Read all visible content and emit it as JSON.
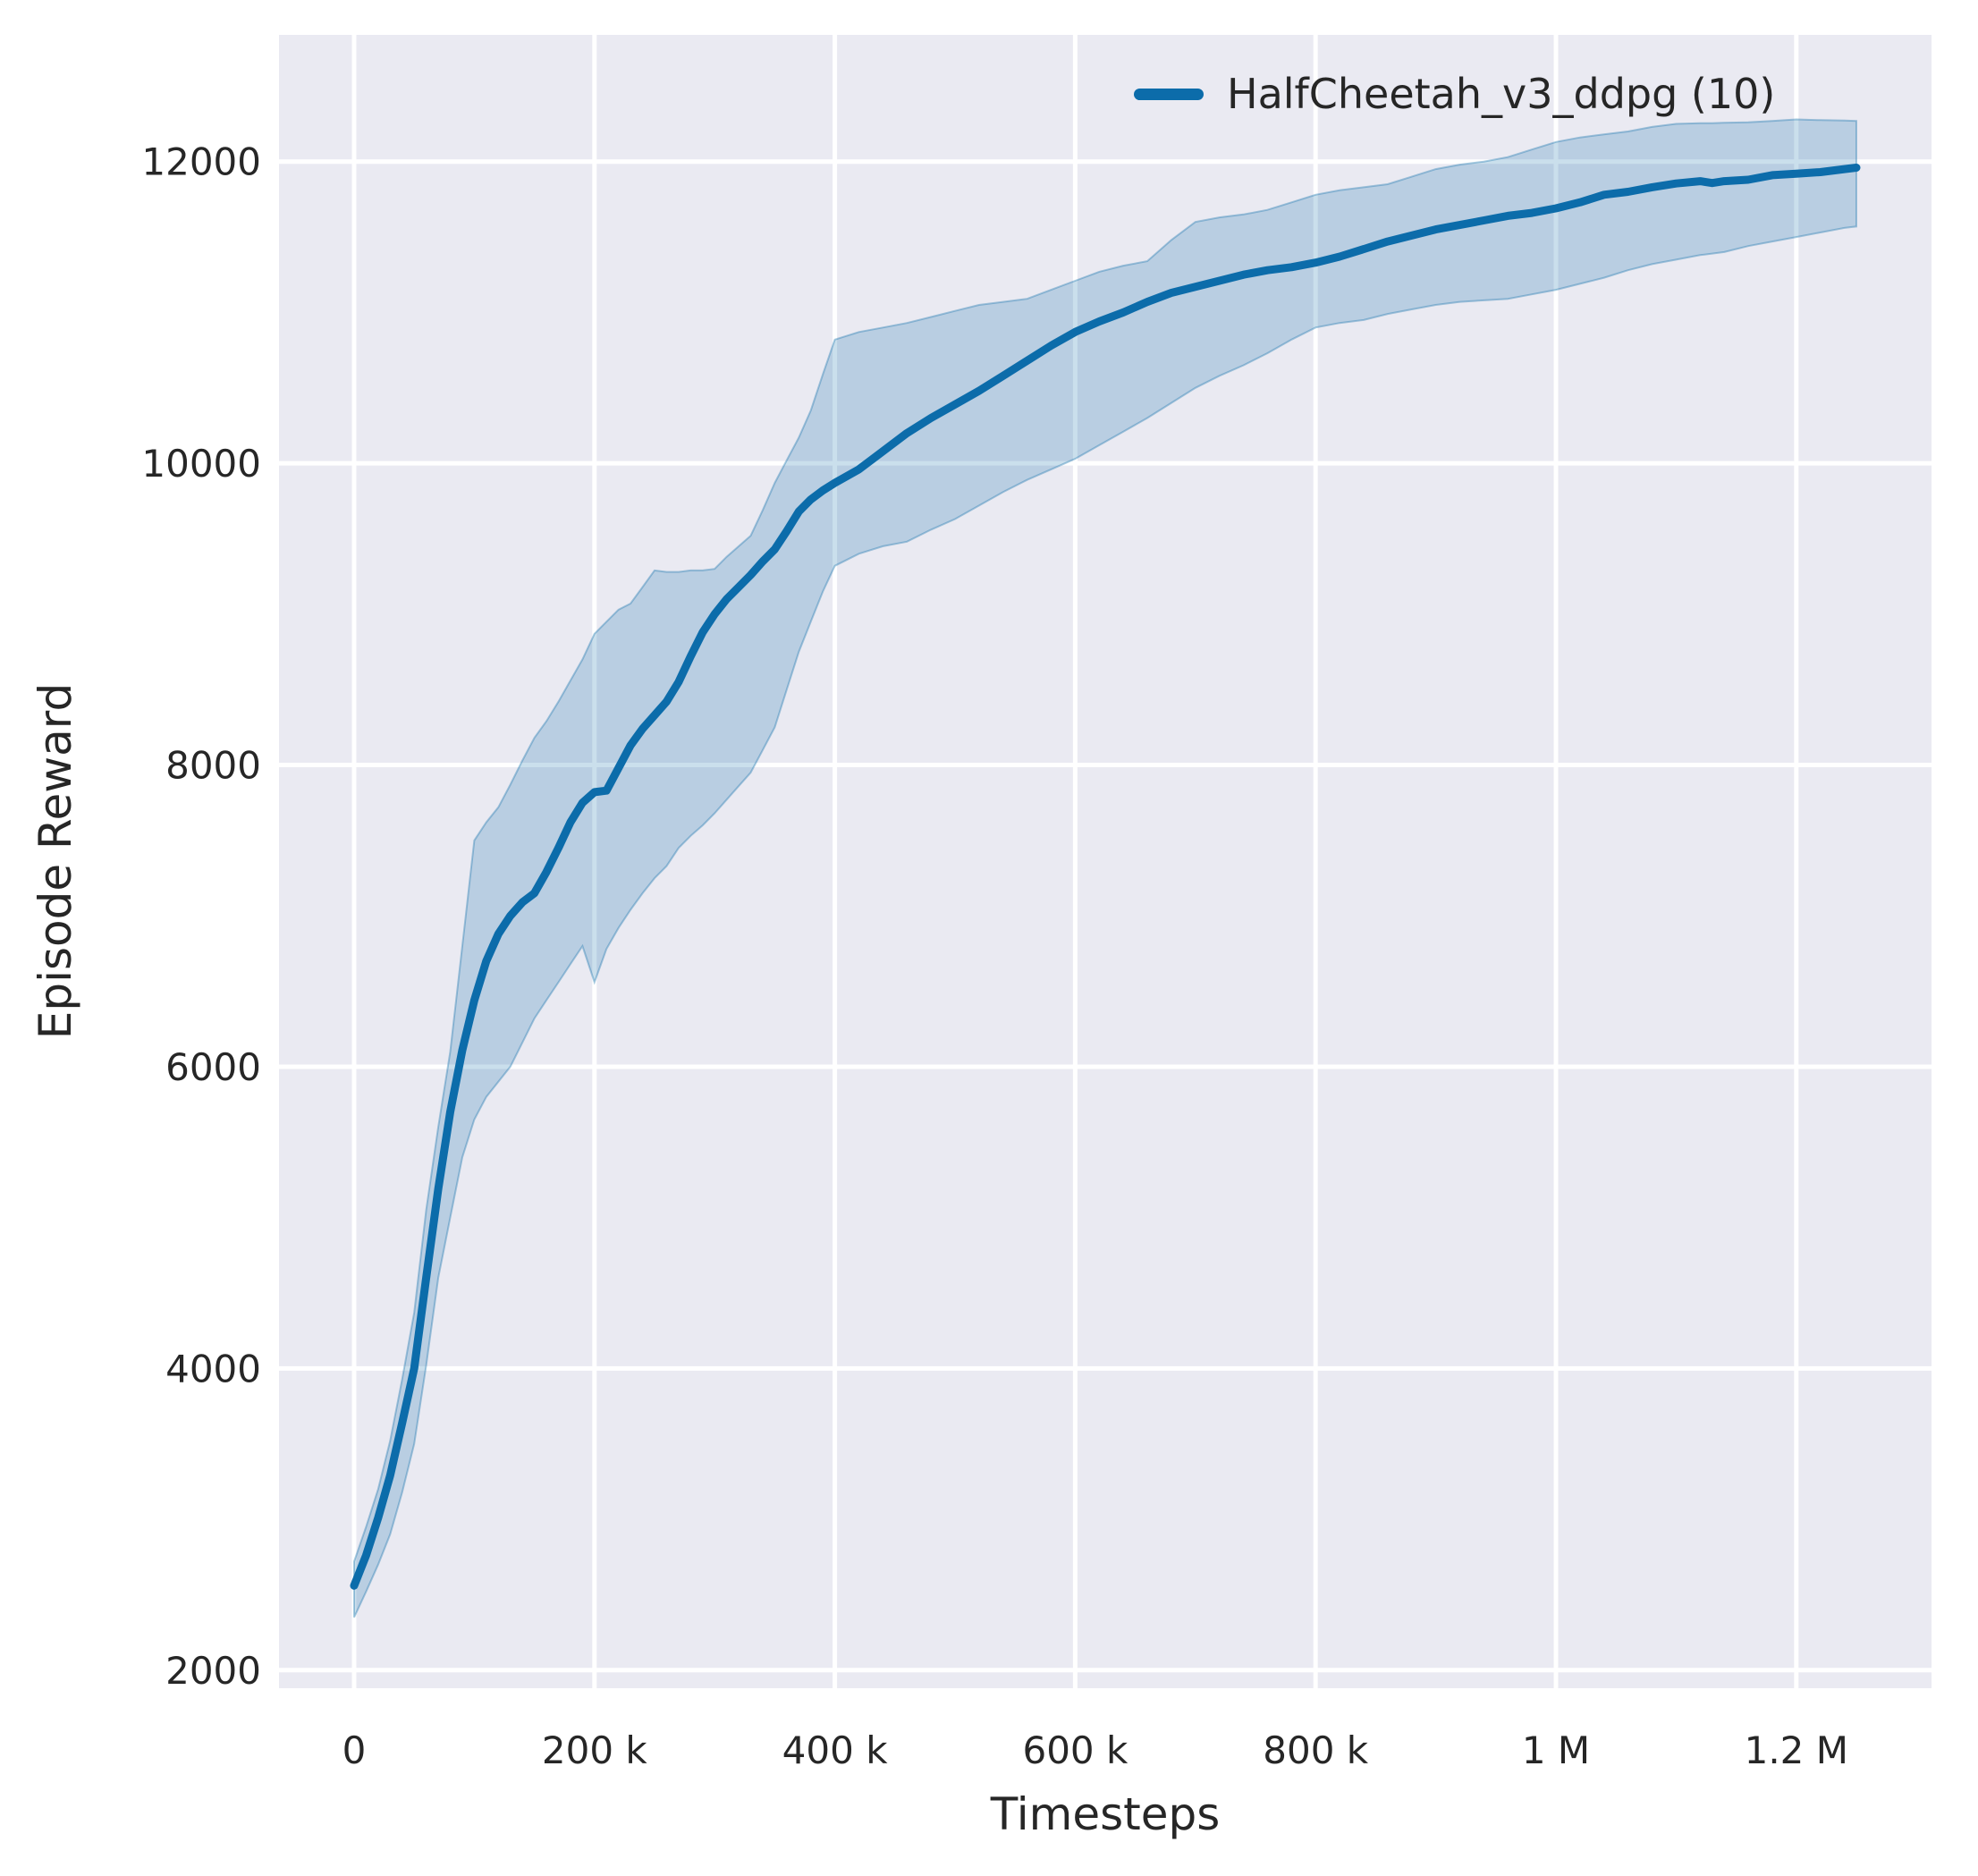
{
  "figure": {
    "background": "#ffffff"
  },
  "axes": {
    "background": "#eaeaf2",
    "grid_color": "#ffffff",
    "text_color": "#262626",
    "xlabel": "Timesteps",
    "ylabel": "Episode Reward"
  },
  "legend": {
    "label": "HalfCheetah_v3_ddpg (10)",
    "swatch_color": "#0c6caa"
  },
  "chart_data": {
    "type": "line",
    "title": "",
    "xlabel": "Timesteps",
    "ylabel": "Episode Reward",
    "grid": true,
    "legend_position": "upper right",
    "xlim": [
      -62500,
      1312500
    ],
    "ylim": [
      1880,
      12840
    ],
    "x_ticks": [
      {
        "value": 0,
        "label": "0"
      },
      {
        "value": 200000,
        "label": "200 k"
      },
      {
        "value": 400000,
        "label": "400 k"
      },
      {
        "value": 600000,
        "label": "600 k"
      },
      {
        "value": 800000,
        "label": "800 k"
      },
      {
        "value": 1000000,
        "label": "1 M"
      },
      {
        "value": 1200000,
        "label": "1.2 M"
      }
    ],
    "y_ticks": [
      {
        "value": 2000,
        "label": "2000"
      },
      {
        "value": 4000,
        "label": "4000"
      },
      {
        "value": 6000,
        "label": "6000"
      },
      {
        "value": 8000,
        "label": "8000"
      },
      {
        "value": 10000,
        "label": "10000"
      },
      {
        "value": 12000,
        "label": "12000"
      }
    ],
    "series": [
      {
        "name": "HalfCheetah_v3_ddpg (10)",
        "color": "#0c6caa",
        "band_fill": "rgba(12,108,170,0.22)",
        "band_edge": "rgba(12,108,170,0.35)",
        "x": [
          0,
          10000,
          20000,
          30000,
          40000,
          50000,
          60000,
          70000,
          80000,
          90000,
          100000,
          110000,
          120000,
          130000,
          140000,
          150000,
          160000,
          170000,
          180000,
          190000,
          200000,
          210000,
          220000,
          230000,
          240000,
          250000,
          260000,
          270000,
          280000,
          290000,
          300000,
          310000,
          320000,
          330000,
          340000,
          350000,
          360000,
          370000,
          380000,
          390000,
          400000,
          420000,
          440000,
          460000,
          480000,
          500000,
          520000,
          540000,
          560000,
          580000,
          600000,
          620000,
          640000,
          660000,
          680000,
          700000,
          720000,
          740000,
          760000,
          780000,
          800000,
          820000,
          840000,
          860000,
          880000,
          900000,
          920000,
          940000,
          960000,
          980000,
          1000000,
          1020000,
          1040000,
          1060000,
          1080000,
          1100000,
          1120000,
          1130000,
          1140000,
          1160000,
          1180000,
          1200000,
          1220000,
          1240000,
          1250000
        ],
        "mean": [
          2560,
          2760,
          3010,
          3290,
          3640,
          4000,
          4600,
          5190,
          5700,
          6110,
          6440,
          6700,
          6880,
          7000,
          7090,
          7150,
          7290,
          7450,
          7620,
          7750,
          7820,
          7830,
          7980,
          8130,
          8240,
          8330,
          8420,
          8550,
          8720,
          8880,
          9000,
          9100,
          9180,
          9260,
          9350,
          9430,
          9550,
          9680,
          9760,
          9820,
          9870,
          9960,
          10080,
          10200,
          10300,
          10390,
          10480,
          10580,
          10680,
          10780,
          10870,
          10940,
          11000,
          11070,
          11130,
          11170,
          11210,
          11250,
          11280,
          11300,
          11330,
          11370,
          11420,
          11470,
          11510,
          11550,
          11580,
          11610,
          11640,
          11660,
          11690,
          11730,
          11780,
          11800,
          11830,
          11855,
          11870,
          11858,
          11870,
          11880,
          11910,
          11920,
          11930,
          11950,
          11960
        ],
        "band_lower": [
          2350,
          2520,
          2700,
          2900,
          3180,
          3500,
          4020,
          4600,
          5000,
          5400,
          5650,
          5800,
          5900,
          6000,
          6160,
          6320,
          6440,
          6560,
          6680,
          6800,
          6560,
          6780,
          6920,
          7040,
          7150,
          7250,
          7330,
          7450,
          7530,
          7600,
          7680,
          7770,
          7860,
          7950,
          8100,
          8250,
          8500,
          8750,
          8950,
          9150,
          9320,
          9400,
          9450,
          9480,
          9560,
          9630,
          9720,
          9810,
          9890,
          9960,
          10030,
          10120,
          10210,
          10300,
          10400,
          10500,
          10580,
          10650,
          10730,
          10820,
          10900,
          10930,
          10950,
          10990,
          11020,
          11050,
          11070,
          11080,
          11090,
          11120,
          11150,
          11190,
          11230,
          11280,
          11320,
          11350,
          11380,
          11390,
          11400,
          11440,
          11470,
          11500,
          11530,
          11560,
          11570
        ],
        "band_upper": [
          2720,
          2950,
          3200,
          3520,
          3930,
          4370,
          5050,
          5600,
          6100,
          6800,
          7500,
          7620,
          7720,
          7870,
          8030,
          8180,
          8290,
          8420,
          8560,
          8700,
          8870,
          8950,
          9030,
          9070,
          9180,
          9290,
          9280,
          9280,
          9290,
          9290,
          9300,
          9380,
          9450,
          9520,
          9690,
          9870,
          10020,
          10170,
          10350,
          10590,
          10820,
          10870,
          10900,
          10930,
          10970,
          11010,
          11050,
          11070,
          11090,
          11150,
          11210,
          11270,
          11310,
          11340,
          11480,
          11600,
          11630,
          11650,
          11680,
          11730,
          11780,
          11810,
          11830,
          11850,
          11900,
          11950,
          11980,
          12000,
          12030,
          12080,
          12130,
          12160,
          12180,
          12200,
          12230,
          12250,
          12255,
          12255,
          12258,
          12260,
          12270,
          12280,
          12275,
          12272,
          12270
        ]
      }
    ]
  }
}
